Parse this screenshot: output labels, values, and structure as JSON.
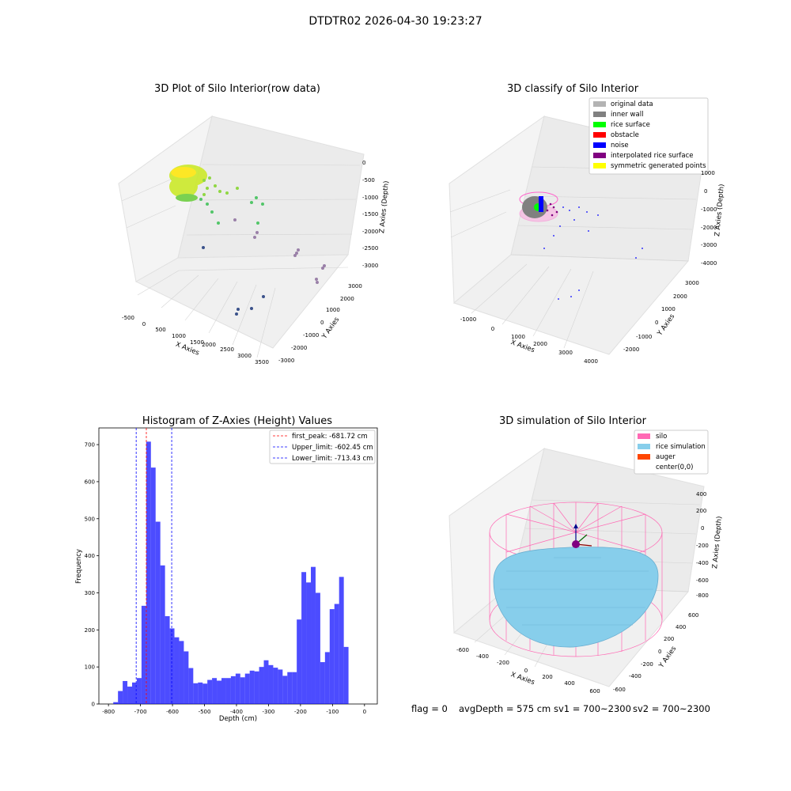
{
  "figure": {
    "title": "DTDTR02 2026-04-30 19:23:27",
    "footer": {
      "flag": "flag = 0",
      "avg_depth": "avgDepth = 575 cm",
      "sv1": "sv1 = 700~2300",
      "sv2": "sv2 = 700~2300"
    }
  },
  "chart_data": [
    {
      "type": "scatter",
      "panel": "raw",
      "title": "3D Plot of Silo Interior(row data)",
      "xlabel": "X Axies",
      "ylabel": "Y Axies",
      "zlabel": "Z Axies (Depth)",
      "x_ticks": [
        "-500",
        "0",
        "500",
        "1000",
        "1500",
        "2000",
        "2500",
        "3000",
        "3500"
      ],
      "y_ticks": [
        "-3000",
        "-2000",
        "-1000",
        "0",
        "1000",
        "2000",
        "3000"
      ],
      "z_ticks": [
        "0",
        "-500",
        "-1000",
        "-1500",
        "-2000",
        "-2500",
        "-3000"
      ],
      "colormap": [
        "#440154",
        "#31688e",
        "#35b779",
        "#90d743",
        "#fde725"
      ]
    },
    {
      "type": "scatter",
      "panel": "classify",
      "title": "3D classify of Silo Interior",
      "xlabel": "X Axies",
      "ylabel": "Y Axies",
      "zlabel": "Z Axies (Depth)",
      "x_ticks": [
        "-1000",
        "0",
        "1000",
        "2000",
        "3000",
        "4000"
      ],
      "y_ticks": [
        "-2000",
        "-1000",
        "0",
        "1000",
        "2000",
        "3000"
      ],
      "z_ticks": [
        "1000",
        "0",
        "-1000",
        "-2000",
        "-3000",
        "-4000"
      ],
      "legend_position": "top-right",
      "legend": [
        {
          "label": "original data",
          "color": "#b3b3b3"
        },
        {
          "label": "inner wall",
          "color": "#808080"
        },
        {
          "label": "rice surface",
          "color": "#00ff00"
        },
        {
          "label": "obstacle",
          "color": "#ff0000"
        },
        {
          "label": "noise",
          "color": "#0000ff"
        },
        {
          "label": "interpolated rice surface",
          "color": "#800080"
        },
        {
          "label": "symmetric generated points",
          "color": "#ffff00"
        }
      ]
    },
    {
      "type": "bar",
      "panel": "histogram",
      "title": "Histogram of Z-Axies (Height) Values",
      "xlabel": "Depth (cm)",
      "ylabel": "Frequency",
      "xlim": [
        -830,
        40
      ],
      "ylim": [
        0,
        745
      ],
      "bar_color": "#0000ff",
      "x_ticks": [
        -800,
        -700,
        -600,
        -500,
        -400,
        -300,
        -200,
        -100,
        0
      ],
      "y_ticks": [
        0,
        100,
        200,
        300,
        400,
        500,
        600,
        700
      ],
      "bin_start": -785,
      "bin_width": 14.7,
      "values": [
        5,
        35,
        62,
        47,
        58,
        70,
        265,
        708,
        638,
        492,
        374,
        237,
        204,
        180,
        170,
        142,
        97,
        56,
        58,
        55,
        65,
        70,
        63,
        70,
        70,
        75,
        82,
        72,
        82,
        90,
        88,
        100,
        118,
        105,
        98,
        93,
        76,
        86,
        86,
        228,
        356,
        328,
        370,
        300,
        113,
        140,
        256,
        270,
        343,
        154
      ],
      "vlines": [
        {
          "label": "first_peak: -681.72 cm",
          "x": -681.72,
          "color": "#ff0000"
        },
        {
          "label": "Upper_limit: -602.45 cm",
          "x": -602.45,
          "color": "#0000ff"
        },
        {
          "label": "Lower_limit: -713.43 cm",
          "x": -713.43,
          "color": "#0000ff"
        }
      ],
      "legend_position": "top-right"
    },
    {
      "type": "surface",
      "panel": "simulation",
      "title": "3D simulation of Silo Interior",
      "xlabel": "X Axies",
      "ylabel": "Y Axies",
      "zlabel": "Z Axies (Depth)",
      "x_ticks": [
        "-600",
        "-400",
        "-200",
        "0",
        "200",
        "400",
        "600"
      ],
      "y_ticks": [
        "-600",
        "-400",
        "-200",
        "0",
        "200",
        "400",
        "600"
      ],
      "z_ticks": [
        "400",
        "200",
        "0",
        "-200",
        "-400",
        "-600",
        "-800"
      ],
      "legend_position": "top-right",
      "legend": [
        {
          "label": "silo",
          "color": "#ff69b4"
        },
        {
          "label": "rice simulation",
          "color": "#87ceeb"
        },
        {
          "label": "auger",
          "color": "#ff4500"
        },
        {
          "label": "center(0,0)",
          "color": "#ffffff"
        }
      ]
    }
  ]
}
